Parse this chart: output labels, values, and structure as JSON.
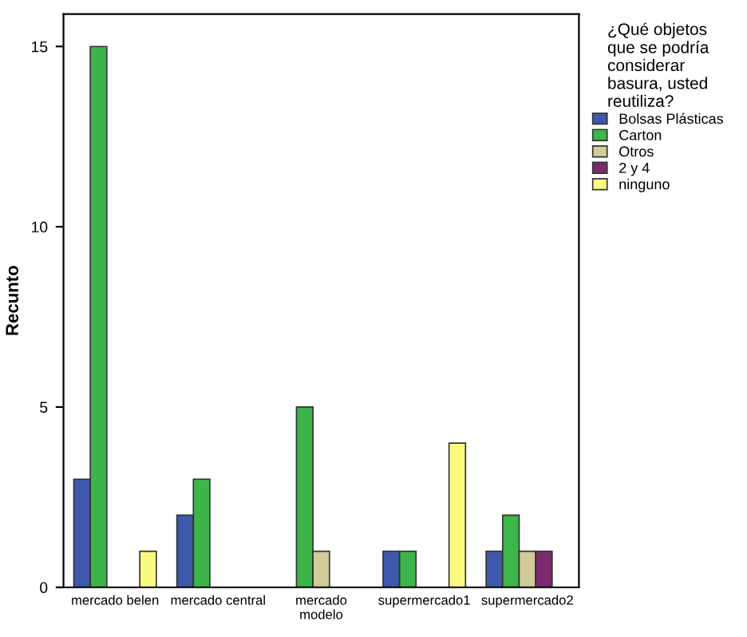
{
  "chart_data": {
    "type": "bar",
    "ylabel": "Recunto",
    "legend_title": "¿Qué objetos\nque se podría\nconsiderar\nbasura, usted\nreutiliza?",
    "categories": [
      "mercado belen",
      "mercado central",
      "mercado\nmodelo",
      "supermercado1",
      "supermercado2"
    ],
    "series": [
      {
        "name": "Bolsas Plásticas",
        "color": "#3e58ac",
        "values": [
          3,
          2,
          null,
          1,
          1
        ]
      },
      {
        "name": "Carton",
        "color": "#3cb54a",
        "values": [
          15,
          3,
          5,
          1,
          2
        ]
      },
      {
        "name": "Otros",
        "color": "#d2cc9a",
        "values": [
          null,
          null,
          1,
          null,
          1
        ]
      },
      {
        "name": "2 y 4",
        "color": "#7b2a6e",
        "values": [
          null,
          null,
          null,
          null,
          1
        ]
      },
      {
        "name": "ninguno",
        "color": "#fafa80",
        "values": [
          1,
          null,
          null,
          4,
          null
        ]
      }
    ],
    "ylim": [
      0,
      15.9
    ],
    "yticks": [
      0,
      5,
      10,
      15
    ],
    "grid": false,
    "legend": "right"
  }
}
